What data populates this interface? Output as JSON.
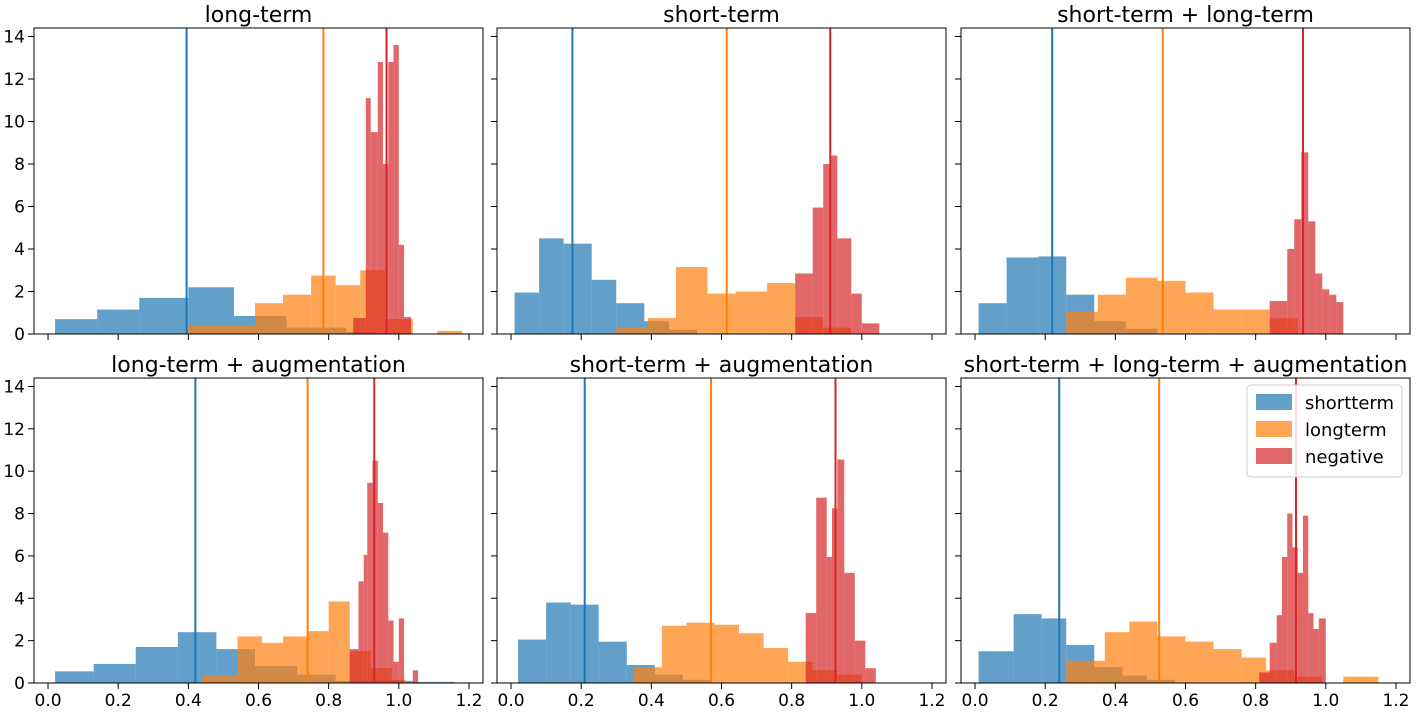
{
  "chart_data": [
    {
      "type": "histogram",
      "title": "long-term",
      "xlim": [
        -0.04,
        1.24
      ],
      "ylim": [
        0,
        14.4
      ],
      "x_ticks": [
        "0.0",
        "0.2",
        "0.4",
        "0.6",
        "0.8",
        "1.0",
        "1.2"
      ],
      "y_ticks": [
        "0",
        "2",
        "4",
        "6",
        "8",
        "10",
        "12",
        "14"
      ],
      "series": [
        {
          "name": "shortterm",
          "color": "#1f77b4",
          "bins": [
            [
              0.02,
              0.14,
              0.7
            ],
            [
              0.14,
              0.26,
              1.15
            ],
            [
              0.26,
              0.4,
              1.7
            ],
            [
              0.4,
              0.53,
              2.2
            ],
            [
              0.53,
              0.68,
              0.85
            ],
            [
              0.68,
              0.85,
              0.3
            ],
            [
              0.85,
              0.93,
              0.1
            ]
          ],
          "mean": 0.395
        },
        {
          "name": "longterm",
          "color": "#ff7f0e",
          "bins": [
            [
              0.4,
              0.59,
              0.4
            ],
            [
              0.59,
              0.67,
              1.45
            ],
            [
              0.67,
              0.75,
              1.85
            ],
            [
              0.75,
              0.82,
              2.75
            ],
            [
              0.82,
              0.89,
              2.3
            ],
            [
              0.89,
              0.96,
              3.0
            ],
            [
              0.96,
              1.04,
              0.7
            ],
            [
              1.11,
              1.18,
              0.15
            ]
          ],
          "mean": 0.785
        },
        {
          "name": "negative",
          "color": "#d62728",
          "bins": [
            [
              0.87,
              0.906,
              0.75
            ],
            [
              0.906,
              0.92,
              11.1
            ],
            [
              0.92,
              0.94,
              9.5
            ],
            [
              0.94,
              0.955,
              12.8
            ],
            [
              0.955,
              0.97,
              8.0
            ],
            [
              0.97,
              0.985,
              12.8
            ],
            [
              0.985,
              1.0,
              13.6
            ],
            [
              1.0,
              1.015,
              4.2
            ],
            [
              1.015,
              1.035,
              0.8
            ]
          ],
          "mean": 0.965
        }
      ]
    },
    {
      "type": "histogram",
      "title": "short-term",
      "xlim": [
        -0.04,
        1.24
      ],
      "ylim": [
        0,
        14.4
      ],
      "x_ticks": [
        "0.0",
        "0.2",
        "0.4",
        "0.6",
        "0.8",
        "1.0",
        "1.2"
      ],
      "y_ticks": [
        "0",
        "2",
        "4",
        "6",
        "8",
        "10",
        "12",
        "14"
      ],
      "series": [
        {
          "name": "shortterm",
          "color": "#1f77b4",
          "bins": [
            [
              0.01,
              0.08,
              1.95
            ],
            [
              0.08,
              0.15,
              4.5
            ],
            [
              0.15,
              0.23,
              4.25
            ],
            [
              0.23,
              0.3,
              2.55
            ],
            [
              0.3,
              0.38,
              1.45
            ],
            [
              0.38,
              0.45,
              0.6
            ],
            [
              0.45,
              0.53,
              0.2
            ]
          ],
          "mean": 0.175
        },
        {
          "name": "longterm",
          "color": "#ff7f0e",
          "bins": [
            [
              0.3,
              0.39,
              0.3
            ],
            [
              0.39,
              0.47,
              0.75
            ],
            [
              0.47,
              0.56,
              3.15
            ],
            [
              0.56,
              0.64,
              1.9
            ],
            [
              0.64,
              0.73,
              2.0
            ],
            [
              0.73,
              0.81,
              2.4
            ],
            [
              0.81,
              0.89,
              0.8
            ],
            [
              0.89,
              0.97,
              0.3
            ]
          ],
          "mean": 0.615
        },
        {
          "name": "negative",
          "color": "#d62728",
          "bins": [
            [
              0.81,
              0.86,
              2.85
            ],
            [
              0.86,
              0.89,
              5.95
            ],
            [
              0.89,
              0.91,
              8.0
            ],
            [
              0.91,
              0.93,
              8.4
            ],
            [
              0.93,
              0.97,
              4.5
            ],
            [
              0.97,
              1.0,
              1.9
            ],
            [
              1.0,
              1.05,
              0.5
            ]
          ],
          "mean": 0.91
        }
      ]
    },
    {
      "type": "histogram",
      "title": "short-term + long-term",
      "xlim": [
        -0.04,
        1.24
      ],
      "ylim": [
        0,
        14.4
      ],
      "x_ticks": [
        "0.0",
        "0.2",
        "0.4",
        "0.6",
        "0.8",
        "1.0",
        "1.2"
      ],
      "y_ticks": [
        "0",
        "2",
        "4",
        "6",
        "8",
        "10",
        "12",
        "14"
      ],
      "series": [
        {
          "name": "shortterm",
          "color": "#1f77b4",
          "bins": [
            [
              0.01,
              0.09,
              1.45
            ],
            [
              0.09,
              0.18,
              3.6
            ],
            [
              0.18,
              0.26,
              3.65
            ],
            [
              0.26,
              0.34,
              1.85
            ],
            [
              0.34,
              0.43,
              0.6
            ],
            [
              0.43,
              0.52,
              0.25
            ]
          ],
          "mean": 0.22
        },
        {
          "name": "longterm",
          "color": "#ff7f0e",
          "bins": [
            [
              0.26,
              0.35,
              1.05
            ],
            [
              0.35,
              0.43,
              1.85
            ],
            [
              0.43,
              0.52,
              2.65
            ],
            [
              0.52,
              0.6,
              2.5
            ],
            [
              0.6,
              0.68,
              1.95
            ],
            [
              0.68,
              0.76,
              1.15
            ],
            [
              0.76,
              0.84,
              1.15
            ],
            [
              0.84,
              0.92,
              0.75
            ]
          ],
          "mean": 0.535
        },
        {
          "name": "negative",
          "color": "#d62728",
          "bins": [
            [
              0.84,
              0.89,
              1.55
            ],
            [
              0.89,
              0.91,
              4.0
            ],
            [
              0.91,
              0.93,
              5.4
            ],
            [
              0.93,
              0.95,
              8.55
            ],
            [
              0.95,
              0.97,
              5.3
            ],
            [
              0.97,
              0.99,
              2.85
            ],
            [
              0.99,
              1.01,
              2.1
            ],
            [
              1.01,
              1.03,
              1.85
            ],
            [
              1.03,
              1.05,
              1.5
            ]
          ],
          "mean": 0.935
        }
      ]
    },
    {
      "type": "histogram",
      "title": "long-term + augmentation",
      "xlim": [
        -0.04,
        1.24
      ],
      "ylim": [
        0,
        14.4
      ],
      "x_ticks": [
        "0.0",
        "0.2",
        "0.4",
        "0.6",
        "0.8",
        "1.0",
        "1.2"
      ],
      "y_ticks": [
        "0",
        "2",
        "4",
        "6",
        "8",
        "10",
        "12",
        "14"
      ],
      "series": [
        {
          "name": "shortterm",
          "color": "#1f77b4",
          "bins": [
            [
              0.02,
              0.13,
              0.55
            ],
            [
              0.13,
              0.25,
              0.9
            ],
            [
              0.25,
              0.37,
              1.7
            ],
            [
              0.37,
              0.48,
              2.4
            ],
            [
              0.48,
              0.59,
              1.6
            ],
            [
              0.59,
              0.71,
              0.8
            ],
            [
              0.71,
              0.82,
              0.4
            ],
            [
              0.82,
              0.93,
              0.1
            ],
            [
              0.93,
              1.04,
              0.1
            ],
            [
              1.04,
              1.16,
              0.05
            ]
          ],
          "mean": 0.42
        },
        {
          "name": "longterm",
          "color": "#ff7f0e",
          "bins": [
            [
              0.44,
              0.54,
              0.35
            ],
            [
              0.54,
              0.61,
              2.2
            ],
            [
              0.61,
              0.67,
              1.9
            ],
            [
              0.67,
              0.74,
              2.2
            ],
            [
              0.74,
              0.8,
              2.45
            ],
            [
              0.8,
              0.86,
              3.85
            ],
            [
              0.86,
              0.92,
              1.5
            ],
            [
              0.92,
              0.98,
              0.7
            ],
            [
              0.98,
              1.02,
              0.15
            ]
          ],
          "mean": 0.74
        },
        {
          "name": "negative",
          "color": "#d62728",
          "bins": [
            [
              0.86,
              0.885,
              1.6
            ],
            [
              0.885,
              0.9,
              4.8
            ],
            [
              0.9,
              0.91,
              6.05
            ],
            [
              0.91,
              0.925,
              9.45
            ],
            [
              0.925,
              0.94,
              10.5
            ],
            [
              0.94,
              0.955,
              8.5
            ],
            [
              0.955,
              0.97,
              7.1
            ],
            [
              0.97,
              0.985,
              2.95
            ],
            [
              0.985,
              1.0,
              1.0
            ],
            [
              1.0,
              1.015,
              3.05
            ],
            [
              1.04,
              1.055,
              0.6
            ]
          ],
          "mean": 0.93
        }
      ]
    },
    {
      "type": "histogram",
      "title": "short-term + augmentation",
      "xlim": [
        -0.04,
        1.24
      ],
      "ylim": [
        0,
        14.4
      ],
      "x_ticks": [
        "0.0",
        "0.2",
        "0.4",
        "0.6",
        "0.8",
        "1.0",
        "1.2"
      ],
      "y_ticks": [
        "0",
        "2",
        "4",
        "6",
        "8",
        "10",
        "12",
        "14"
      ],
      "series": [
        {
          "name": "shortterm",
          "color": "#1f77b4",
          "bins": [
            [
              0.02,
              0.1,
              2.05
            ],
            [
              0.1,
              0.17,
              3.8
            ],
            [
              0.17,
              0.25,
              3.7
            ],
            [
              0.25,
              0.33,
              1.95
            ],
            [
              0.33,
              0.41,
              0.85
            ],
            [
              0.41,
              0.49,
              0.4
            ],
            [
              0.49,
              0.57,
              0.15
            ]
          ],
          "mean": 0.21
        },
        {
          "name": "longterm",
          "color": "#ff7f0e",
          "bins": [
            [
              0.35,
              0.43,
              0.75
            ],
            [
              0.43,
              0.5,
              2.7
            ],
            [
              0.5,
              0.58,
              2.85
            ],
            [
              0.58,
              0.65,
              2.75
            ],
            [
              0.65,
              0.72,
              2.35
            ],
            [
              0.72,
              0.79,
              1.65
            ],
            [
              0.79,
              0.86,
              1.0
            ],
            [
              0.86,
              0.93,
              0.6
            ],
            [
              0.93,
              1.0,
              0.4
            ]
          ],
          "mean": 0.57
        },
        {
          "name": "negative",
          "color": "#d62728",
          "bins": [
            [
              0.84,
              0.87,
              3.3
            ],
            [
              0.87,
              0.9,
              8.75
            ],
            [
              0.9,
              0.915,
              5.95
            ],
            [
              0.915,
              0.93,
              8.25
            ],
            [
              0.93,
              0.95,
              10.55
            ],
            [
              0.95,
              0.98,
              5.2
            ],
            [
              0.98,
              1.01,
              2.0
            ],
            [
              1.01,
              1.04,
              0.7
            ]
          ],
          "mean": 0.925
        }
      ]
    },
    {
      "type": "histogram",
      "title": "short-term + long-term + augmentation",
      "xlim": [
        -0.04,
        1.24
      ],
      "ylim": [
        0,
        14.4
      ],
      "x_ticks": [
        "0.0",
        "0.2",
        "0.4",
        "0.6",
        "0.8",
        "1.0",
        "1.2"
      ],
      "y_ticks": [
        "0",
        "2",
        "4",
        "6",
        "8",
        "10",
        "12",
        "14"
      ],
      "legend": {
        "position": "top-right",
        "entries": [
          "shortterm",
          "longterm",
          "negative"
        ]
      },
      "series": [
        {
          "name": "shortterm",
          "color": "#1f77b4",
          "bins": [
            [
              0.01,
              0.11,
              1.5
            ],
            [
              0.11,
              0.19,
              3.25
            ],
            [
              0.19,
              0.26,
              3.05
            ],
            [
              0.26,
              0.34,
              1.8
            ],
            [
              0.34,
              0.42,
              0.75
            ],
            [
              0.42,
              0.49,
              0.35
            ],
            [
              0.49,
              0.57,
              0.15
            ]
          ],
          "mean": 0.24
        },
        {
          "name": "longterm",
          "color": "#ff7f0e",
          "bins": [
            [
              0.26,
              0.37,
              1.05
            ],
            [
              0.37,
              0.44,
              2.4
            ],
            [
              0.44,
              0.52,
              2.9
            ],
            [
              0.52,
              0.6,
              2.2
            ],
            [
              0.6,
              0.68,
              1.95
            ],
            [
              0.68,
              0.76,
              1.6
            ],
            [
              0.76,
              0.83,
              1.2
            ],
            [
              0.83,
              0.91,
              0.6
            ],
            [
              0.91,
              0.99,
              0.3
            ],
            [
              1.05,
              1.15,
              0.3
            ]
          ],
          "mean": 0.525
        },
        {
          "name": "negative",
          "color": "#d62728",
          "bins": [
            [
              0.81,
              0.84,
              0.5
            ],
            [
              0.84,
              0.86,
              1.9
            ],
            [
              0.86,
              0.875,
              3.2
            ],
            [
              0.875,
              0.89,
              5.95
            ],
            [
              0.89,
              0.905,
              8.0
            ],
            [
              0.905,
              0.92,
              6.4
            ],
            [
              0.92,
              0.935,
              5.2
            ],
            [
              0.935,
              0.95,
              7.9
            ],
            [
              0.95,
              0.965,
              3.3
            ],
            [
              0.965,
              0.98,
              2.55
            ],
            [
              0.98,
              1.0,
              3.05
            ]
          ],
          "mean": 0.915
        }
      ]
    }
  ]
}
